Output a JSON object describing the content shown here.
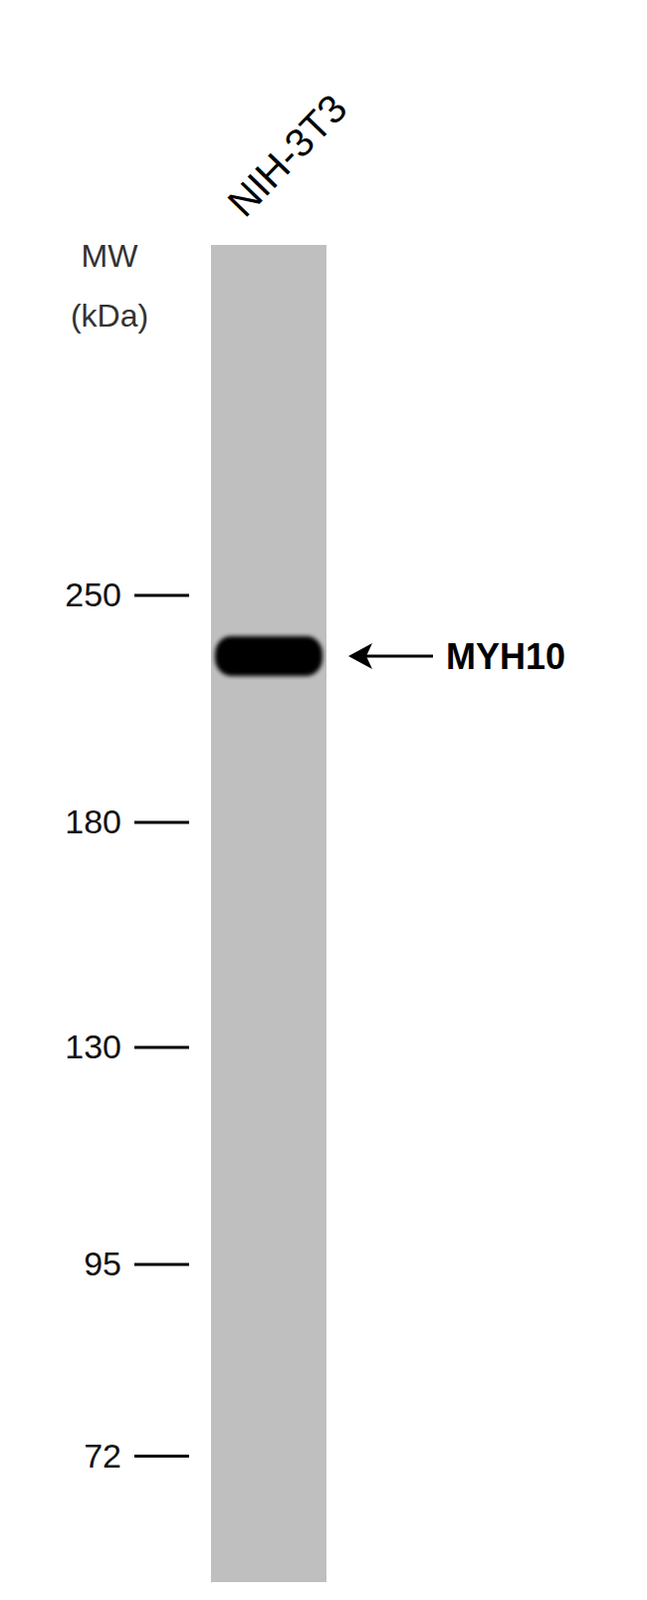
{
  "chart_data": {
    "type": "western_blot",
    "y_label": [
      "MW",
      "(kDa)"
    ],
    "categories": [
      "NIH-3T3"
    ],
    "series": [
      {
        "name": "MYH10",
        "color": "#000000",
        "values": [
          229
        ]
      }
    ],
    "ylim": [
      60,
      415
    ],
    "yticks": [
      72,
      95,
      130,
      180,
      250
    ],
    "log": "y"
  }
}
